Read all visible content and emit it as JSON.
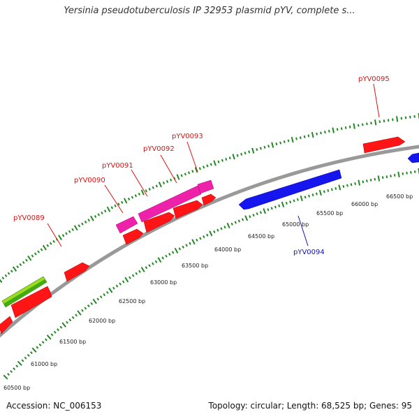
{
  "title": "Yersinia pseudotuberculosis IP 32953 plasmid pYV, complete s...",
  "footer": {
    "accession": "Accession: NC_006153",
    "stats": "Topology: circular; Length: 68,525 bp; Genes: 95"
  },
  "colors": {
    "forward_gene": "#ff1010",
    "reverse_gene": "#1010ee",
    "highlight_gene": "#ee1aa0",
    "rna_gene": "#88dd22",
    "backbone": "#888888",
    "tick": "#228822",
    "forward_label": "#dd1111",
    "reverse_label": "#1111bb"
  },
  "scale_labels": [
    "60500 bp",
    "61000 bp",
    "61500 bp",
    "62000 bp",
    "62500 bp",
    "63000 bp",
    "63500 bp",
    "64000 bp",
    "64500 bp",
    "65000 bp",
    "65500 bp",
    "66000 bp",
    "66500 bp"
  ],
  "gene_labels": [
    {
      "id": "pYV0089",
      "text": "pYV0089",
      "strand": "forward"
    },
    {
      "id": "pYV0090",
      "text": "pYV0090",
      "strand": "forward"
    },
    {
      "id": "pYV0091",
      "text": "pYV0091",
      "strand": "forward"
    },
    {
      "id": "pYV0092",
      "text": "pYV0092",
      "strand": "forward"
    },
    {
      "id": "pYV0093",
      "text": "pYV0093",
      "strand": "forward"
    },
    {
      "id": "pYV0094",
      "text": "pYV0094",
      "strand": "reverse"
    },
    {
      "id": "pYV0095",
      "text": "pYV0095",
      "strand": "forward"
    }
  ]
}
